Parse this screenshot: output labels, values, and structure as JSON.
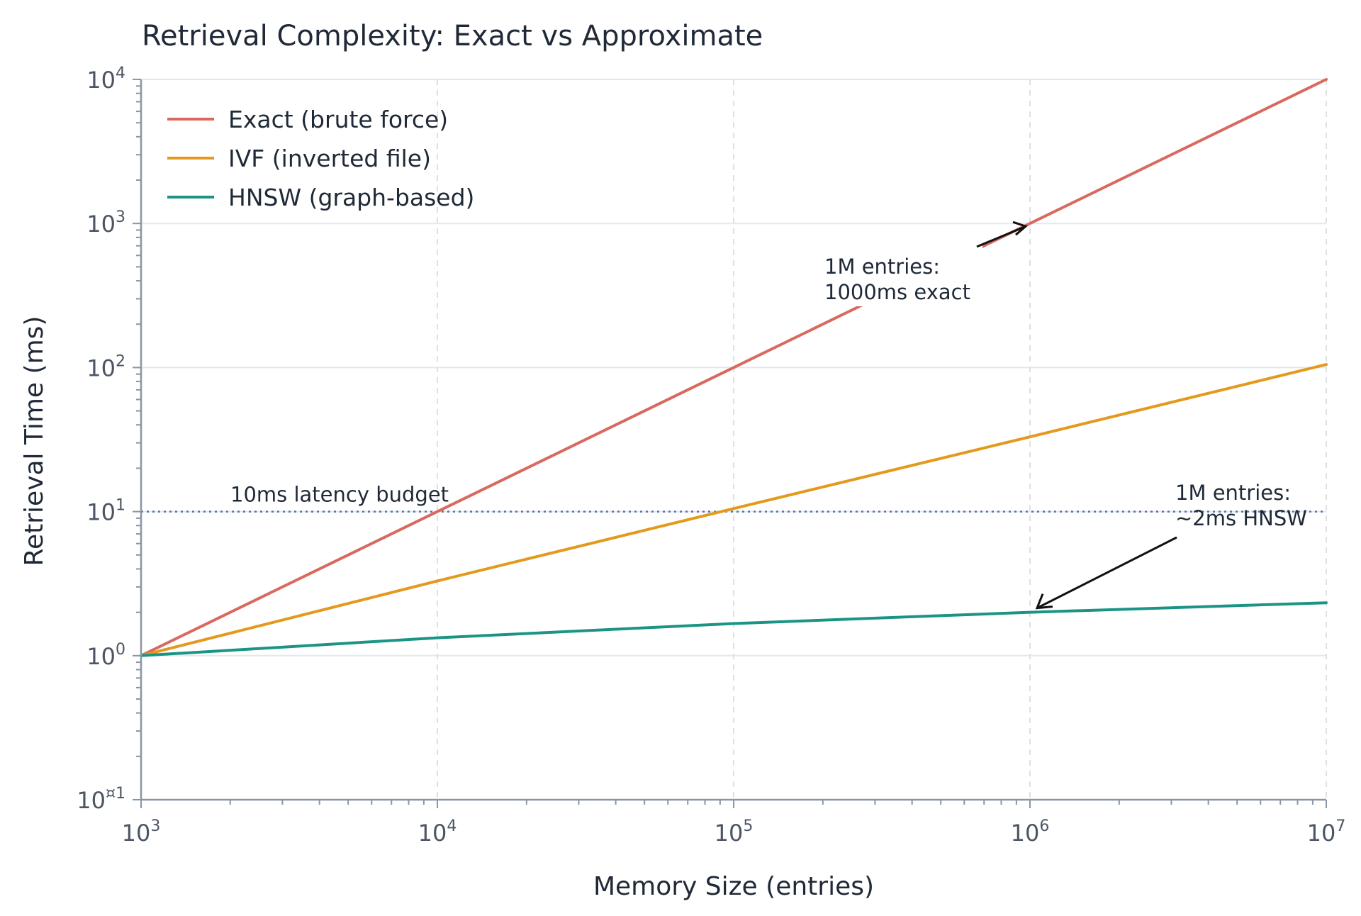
{
  "chart_data": {
    "type": "line",
    "title": "Retrieval Complexity: Exact vs Approximate",
    "xlabel": "Memory Size (entries)",
    "ylabel": "Retrieval Time (ms)",
    "xscale": "log",
    "yscale": "log",
    "xlim": [
      1000,
      10000000
    ],
    "ylim": [
      0.1,
      10000
    ],
    "x_ticks": [
      {
        "value": 1000,
        "base": "10",
        "exp": "3"
      },
      {
        "value": 10000,
        "base": "10",
        "exp": "4"
      },
      {
        "value": 100000,
        "base": "10",
        "exp": "5"
      },
      {
        "value": 1000000,
        "base": "10",
        "exp": "6"
      },
      {
        "value": 10000000,
        "base": "10",
        "exp": "7"
      }
    ],
    "y_ticks": [
      {
        "value": 0.1,
        "base": "10",
        "exp": "¤1"
      },
      {
        "value": 1,
        "base": "10",
        "exp": "0"
      },
      {
        "value": 10,
        "base": "10",
        "exp": "1"
      },
      {
        "value": 100,
        "base": "10",
        "exp": "2"
      },
      {
        "value": 1000,
        "base": "10",
        "exp": "3"
      },
      {
        "value": 10000,
        "base": "10",
        "exp": "4"
      }
    ],
    "grid": true,
    "legend_position": "top-left",
    "series": [
      {
        "name": "Exact (brute force)",
        "color": "#d9695f",
        "x": [
          1000,
          10000,
          100000,
          1000000,
          10000000
        ],
        "y": [
          1,
          10,
          100,
          1000,
          10000
        ]
      },
      {
        "name": "IVF (inverted file)",
        "color": "#e39a1c",
        "x": [
          1000,
          10000,
          100000,
          1000000,
          10000000
        ],
        "y": [
          1,
          3.3,
          10.5,
          33,
          105
        ]
      },
      {
        "name": "HNSW (graph-based)",
        "color": "#1c9485",
        "x": [
          1000,
          10000,
          100000,
          1000000,
          10000000
        ],
        "y": [
          1,
          1.33,
          1.67,
          2,
          2.33
        ]
      }
    ],
    "reference_line": {
      "y": 10,
      "label": "10ms latency budget",
      "color": "#5572b0"
    },
    "annotations": [
      {
        "lines": [
          "1M entries:",
          "1000ms exact"
        ],
        "x": 1000000,
        "y": 1000
      },
      {
        "lines": [
          "1M entries:",
          "~2ms HNSW"
        ],
        "x": 1000000,
        "y": 2
      }
    ]
  }
}
